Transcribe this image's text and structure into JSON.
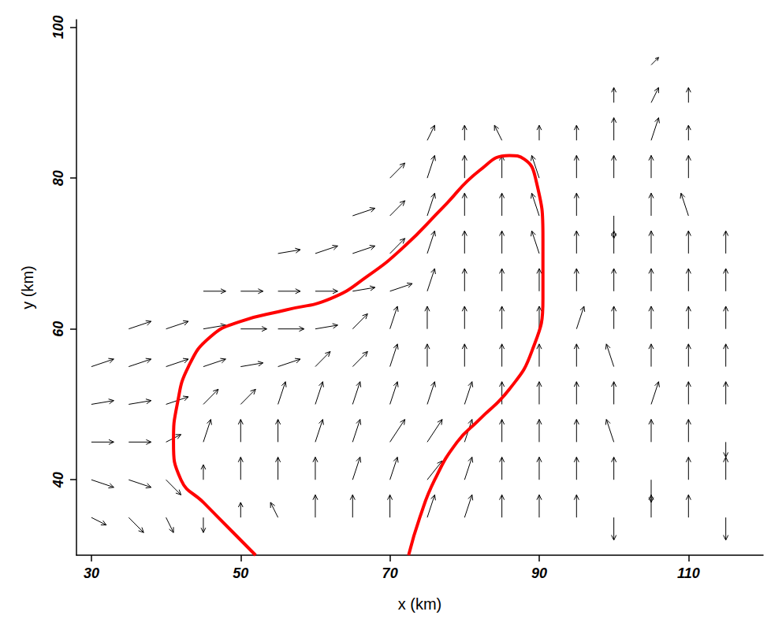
{
  "chart_data": {
    "type": "quiver",
    "xlabel": "x (km)",
    "ylabel": "y (km)",
    "xlim": [
      28,
      120
    ],
    "ylim": [
      30,
      101
    ],
    "xticks": [
      30,
      50,
      70,
      90,
      110
    ],
    "yticks": [
      40,
      60,
      80,
      100
    ],
    "grid": false,
    "series": [
      {
        "type": "quiver",
        "color": "#000000",
        "vectors": [
          [
            30,
            35,
            2,
            -1
          ],
          [
            35,
            35,
            2,
            -2
          ],
          [
            40,
            35,
            1,
            -2
          ],
          [
            45,
            35,
            0,
            -2
          ],
          [
            50,
            35,
            0,
            2
          ],
          [
            55,
            35,
            -1,
            2
          ],
          [
            60,
            35,
            0,
            3
          ],
          [
            65,
            35,
            0,
            3
          ],
          [
            70,
            35,
            0,
            3
          ],
          [
            75,
            35,
            1,
            3
          ],
          [
            80,
            35,
            1,
            3
          ],
          [
            85,
            35,
            0,
            3
          ],
          [
            90,
            35,
            0,
            3
          ],
          [
            95,
            35,
            0,
            3
          ],
          [
            100,
            35,
            0,
            -3
          ],
          [
            105,
            35,
            0,
            3
          ],
          [
            110,
            35,
            0,
            3
          ],
          [
            115,
            35,
            0,
            -3
          ],
          [
            30,
            40,
            3,
            -1
          ],
          [
            35,
            40,
            3,
            -1
          ],
          [
            40,
            40,
            2,
            -2
          ],
          [
            45,
            40,
            0,
            2
          ],
          [
            50,
            40,
            0,
            3
          ],
          [
            55,
            40,
            0,
            3
          ],
          [
            60,
            40,
            0,
            3
          ],
          [
            65,
            40,
            1,
            3
          ],
          [
            70,
            40,
            1,
            3
          ],
          [
            75,
            40,
            2,
            2.5
          ],
          [
            80,
            40,
            1,
            3
          ],
          [
            85,
            40,
            0,
            3
          ],
          [
            90,
            40,
            0,
            3
          ],
          [
            95,
            40,
            0,
            3
          ],
          [
            100,
            40,
            0,
            3
          ],
          [
            105,
            40,
            0,
            -3
          ],
          [
            110,
            40,
            0,
            3
          ],
          [
            115,
            40,
            0,
            3
          ],
          [
            30,
            45,
            3,
            0
          ],
          [
            35,
            45,
            3,
            0
          ],
          [
            40,
            45,
            2,
            1
          ],
          [
            45,
            45,
            1,
            3
          ],
          [
            50,
            45,
            0,
            3
          ],
          [
            55,
            45,
            0,
            3
          ],
          [
            60,
            45,
            1,
            3
          ],
          [
            65,
            45,
            1,
            3
          ],
          [
            70,
            45,
            2,
            3
          ],
          [
            75,
            45,
            2,
            3
          ],
          [
            80,
            45,
            1,
            3
          ],
          [
            85,
            45,
            0,
            3
          ],
          [
            90,
            45,
            0,
            3
          ],
          [
            95,
            45,
            0,
            3
          ],
          [
            100,
            45,
            -1,
            3
          ],
          [
            105,
            45,
            0,
            3
          ],
          [
            110,
            45,
            0,
            3
          ],
          [
            115,
            45,
            0,
            -2
          ],
          [
            30,
            50,
            3,
            0.5
          ],
          [
            35,
            50,
            3,
            0.5
          ],
          [
            40,
            50,
            3,
            1
          ],
          [
            45,
            50,
            2,
            2
          ],
          [
            50,
            50,
            2,
            2
          ],
          [
            55,
            50,
            1,
            3
          ],
          [
            60,
            50,
            1,
            3
          ],
          [
            65,
            50,
            1,
            3
          ],
          [
            70,
            50,
            1,
            3
          ],
          [
            75,
            50,
            1,
            3
          ],
          [
            80,
            50,
            1,
            3
          ],
          [
            85,
            50,
            0,
            3
          ],
          [
            90,
            50,
            0,
            3
          ],
          [
            95,
            50,
            0,
            3
          ],
          [
            100,
            50,
            0,
            3
          ],
          [
            105,
            50,
            1,
            3
          ],
          [
            110,
            50,
            0,
            3
          ],
          [
            115,
            50,
            0,
            3
          ],
          [
            30,
            55,
            3,
            1
          ],
          [
            35,
            55,
            3,
            1
          ],
          [
            40,
            55,
            3,
            1
          ],
          [
            45,
            55,
            3,
            1
          ],
          [
            50,
            55,
            3,
            0.5
          ],
          [
            55,
            55,
            3,
            1
          ],
          [
            60,
            55,
            2,
            2
          ],
          [
            65,
            55,
            2,
            2
          ],
          [
            70,
            55,
            1,
            3
          ],
          [
            75,
            55,
            0,
            3
          ],
          [
            80,
            55,
            0,
            3
          ],
          [
            85,
            55,
            0,
            3
          ],
          [
            90,
            55,
            0,
            3
          ],
          [
            95,
            55,
            0,
            3
          ],
          [
            100,
            55,
            -1,
            3
          ],
          [
            105,
            55,
            0,
            3
          ],
          [
            110,
            55,
            0,
            3
          ],
          [
            115,
            55,
            0,
            3
          ],
          [
            35,
            60,
            3,
            1
          ],
          [
            40,
            60,
            3,
            1
          ],
          [
            45,
            60,
            3,
            0.5
          ],
          [
            50,
            60,
            3.5,
            0
          ],
          [
            55,
            60,
            3.5,
            0
          ],
          [
            60,
            60,
            3,
            0.5
          ],
          [
            65,
            60,
            2,
            2
          ],
          [
            70,
            60,
            1,
            3
          ],
          [
            75,
            60,
            0,
            3
          ],
          [
            80,
            60,
            0,
            3
          ],
          [
            85,
            60,
            0,
            3
          ],
          [
            90,
            60,
            0,
            3
          ],
          [
            95,
            60,
            1,
            3
          ],
          [
            100,
            60,
            0,
            3
          ],
          [
            105,
            60,
            0,
            3
          ],
          [
            110,
            60,
            0,
            3
          ],
          [
            115,
            60,
            0,
            3
          ],
          [
            45,
            65,
            3,
            0
          ],
          [
            50,
            65,
            3,
            0
          ],
          [
            55,
            65,
            3,
            0
          ],
          [
            60,
            65,
            3,
            0
          ],
          [
            65,
            65,
            3,
            0.5
          ],
          [
            70,
            65,
            3,
            1
          ],
          [
            75,
            65,
            1,
            3
          ],
          [
            80,
            65,
            0,
            3
          ],
          [
            85,
            65,
            0,
            3
          ],
          [
            90,
            65,
            0,
            3
          ],
          [
            95,
            65,
            0,
            3
          ],
          [
            100,
            65,
            0,
            3
          ],
          [
            105,
            65,
            0,
            3
          ],
          [
            110,
            65,
            0,
            3
          ],
          [
            115,
            65,
            0,
            3
          ],
          [
            55,
            70,
            3,
            0.5
          ],
          [
            60,
            70,
            3,
            1
          ],
          [
            65,
            70,
            3,
            1
          ],
          [
            70,
            70,
            2,
            2
          ],
          [
            75,
            70,
            1,
            3
          ],
          [
            80,
            70,
            0,
            3
          ],
          [
            85,
            70,
            0,
            3
          ],
          [
            90,
            70,
            -1,
            3
          ],
          [
            95,
            70,
            0,
            3
          ],
          [
            100,
            70,
            0,
            3
          ],
          [
            105,
            70,
            0,
            3
          ],
          [
            110,
            70,
            0,
            3
          ],
          [
            115,
            70,
            0,
            3
          ],
          [
            65,
            75,
            3,
            1
          ],
          [
            70,
            75,
            2,
            2
          ],
          [
            75,
            75,
            1,
            3
          ],
          [
            80,
            75,
            0,
            3
          ],
          [
            85,
            75,
            0,
            3
          ],
          [
            90,
            75,
            -1,
            3
          ],
          [
            95,
            75,
            0,
            3
          ],
          [
            100,
            75,
            0,
            -3
          ],
          [
            105,
            75,
            0,
            3
          ],
          [
            110,
            75,
            -1,
            3
          ],
          [
            70,
            80,
            2,
            2
          ],
          [
            75,
            80,
            1,
            3
          ],
          [
            80,
            80,
            0,
            3
          ],
          [
            85,
            80,
            0,
            3
          ],
          [
            90,
            80,
            -1,
            3
          ],
          [
            95,
            80,
            0,
            3
          ],
          [
            100,
            80,
            0,
            3
          ],
          [
            105,
            80,
            0,
            3
          ],
          [
            110,
            80,
            0,
            3
          ],
          [
            75,
            85,
            1,
            2
          ],
          [
            80,
            85,
            0,
            2
          ],
          [
            85,
            85,
            -1,
            2
          ],
          [
            90,
            85,
            0,
            2
          ],
          [
            95,
            85,
            0,
            2
          ],
          [
            100,
            85,
            0,
            3
          ],
          [
            105,
            85,
            1,
            3
          ],
          [
            110,
            85,
            0,
            2
          ],
          [
            100,
            90,
            0,
            2
          ],
          [
            105,
            90,
            1,
            2
          ],
          [
            110,
            90,
            0,
            2
          ],
          [
            105,
            95,
            1,
            1
          ]
        ]
      },
      {
        "type": "line",
        "color": "#ff0000",
        "x": [
          52,
          49,
          45,
          42,
          41,
          41.5,
          43,
          46,
          50,
          56,
          62,
          67,
          72,
          77,
          82,
          86,
          88,
          89.5,
          90.5,
          90.5,
          89,
          86,
          82,
          79,
          76,
          74,
          72.5
        ],
        "values": [
          30,
          33,
          37,
          40,
          45,
          50,
          55,
          59,
          61,
          62.5,
          64,
          67,
          71,
          76,
          81,
          83,
          82.5,
          80,
          72,
          64,
          57,
          52,
          48,
          45,
          40,
          35,
          30
        ]
      }
    ]
  }
}
